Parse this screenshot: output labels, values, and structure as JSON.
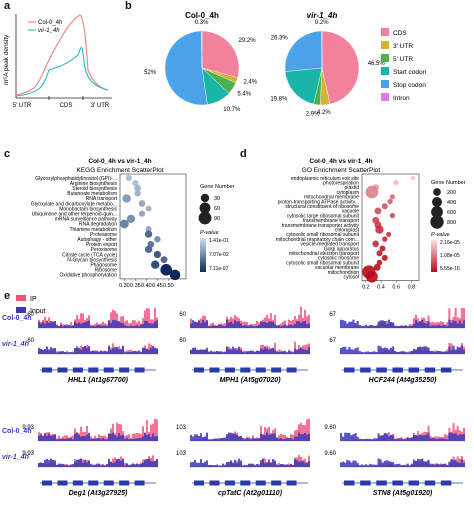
{
  "panels": {
    "a": {
      "label": "a",
      "ylabel": "m⁶A peak density",
      "legend": [
        "Col-0_4h",
        "vir-1_4h"
      ],
      "xticks": [
        "5' UTR",
        "CDS",
        "3' UTR"
      ],
      "colors": {
        "col": "#f08080",
        "vir": "#2ab7c4"
      }
    },
    "b": {
      "label": "b",
      "legend": [
        "CDS",
        "3' UTR",
        "5' UTR",
        "Start codon",
        "Stop codon",
        "Intron"
      ],
      "colors": [
        "#f2829c",
        "#d4b233",
        "#4caf50",
        "#19b5a6",
        "#4aa3e8",
        "#e47ce0"
      ]
    },
    "c": {
      "label": "c",
      "title1": "Col-0_4h vs vir-1_4h",
      "title2": "KEGG Enrichment ScatterPlot",
      "xlabel": "Rich Factor",
      "size_title": "Gene Number",
      "size_labels": [
        "30",
        "60",
        "90"
      ],
      "color_title": "P-value",
      "color_labels": [
        "1.41e-01",
        "7.07e-02",
        "7.11e-07"
      ]
    },
    "d": {
      "label": "d",
      "title1": "Col-0_4h vs vir-1_4h",
      "title2": "GO Enrichment ScatterPlot",
      "xlabel": "Rich Factor",
      "size_title": "Gene Number",
      "size_labels": [
        "200",
        "400",
        "600",
        "800"
      ],
      "color_title": "P-value",
      "color_labels": [
        "2.16e-05",
        "1.08e-05",
        "5.55e-16"
      ]
    },
    "e": {
      "label": "e",
      "legend": [
        "IP",
        "Input"
      ],
      "rows": [
        "Col-0_4h",
        "vir-1_4h"
      ],
      "genes": [
        {
          "name": "HHL1 (At1g67700)",
          "scale": "60"
        },
        {
          "name": "MPH1 (At5g07020)",
          "scale": "60"
        },
        {
          "name": "HCF244 (At4g35250)",
          "scale": "67"
        },
        {
          "name": "Deg1 (At3g27925)",
          "scale": "9.93"
        },
        {
          "name": "cpTatC (At2g01110)",
          "scale": "103"
        },
        {
          "name": "STN8 (At5g01920)",
          "scale": "9.60"
        }
      ],
      "colors": {
        "ip": "#f0507a",
        "input": "#3a3ab8"
      }
    }
  },
  "chart_data": [
    {
      "type": "line",
      "title": "",
      "xlabel": "",
      "ylabel": "m⁶A peak density",
      "categories": [
        "5' UTR",
        "CDS",
        "3' UTR"
      ],
      "series": [
        {
          "name": "Col-0_4h"
        },
        {
          "name": "vir-1_4h"
        }
      ]
    },
    {
      "type": "pie",
      "title": "Col-0_4h",
      "labels": [
        "CDS",
        "3' UTR",
        "5' UTR",
        "Start codon",
        "Stop codon",
        "Intron"
      ],
      "values": [
        29.2,
        2.4,
        5.4,
        10.7,
        52.0,
        0.3
      ]
    },
    {
      "type": "pie",
      "title": "vir-1_4h",
      "labels": [
        "CDS",
        "3' UTR",
        "5' UTR",
        "Start codon",
        "Stop codon",
        "Intron"
      ],
      "values": [
        46.5,
        4.2,
        2.9,
        19.8,
        26.3,
        0.2
      ]
    },
    {
      "type": "scatter",
      "title": "KEGG Enrichment ScatterPlot",
      "xlabel": "Rich Factor",
      "xlim": [
        0.28,
        0.58
      ],
      "xticks": [
        0.3,
        0.35,
        0.4,
        0.45,
        0.5
      ],
      "categories": [
        "Glycosylphosphatidylinositol (GPI)-...",
        "Arginine biosynthesis",
        "Steroid biosynthesis",
        "Butanoate metabolism",
        "RNA transport",
        "Glyoxylate and dicarboxylate metabo...",
        "Monobactam biosynthesis",
        "Ubiquinone and other terpenoid-quin...",
        "mRNA surveillance pathway",
        "RNA degradation",
        "Thiamine metabolism",
        "Proteasome",
        "Autophagy - other",
        "Protein export",
        "Peroxisome",
        "Citrate cycle (TCA cycle)",
        "N-Glycan biosynthesis",
        "Phagosome",
        "Ribosome",
        "Oxidative phosphorylation"
      ],
      "points": [
        {
          "x": 0.32,
          "size": 12,
          "p": 0.12
        },
        {
          "x": 0.35,
          "size": 12,
          "p": 0.12
        },
        {
          "x": 0.36,
          "size": 15,
          "p": 0.11
        },
        {
          "x": 0.36,
          "size": 14,
          "p": 0.11
        },
        {
          "x": 0.31,
          "size": 30,
          "p": 0.09
        },
        {
          "x": 0.38,
          "size": 15,
          "p": 0.1
        },
        {
          "x": 0.41,
          "size": 10,
          "p": 0.11
        },
        {
          "x": 0.38,
          "size": 12,
          "p": 0.1
        },
        {
          "x": 0.33,
          "size": 28,
          "p": 0.08
        },
        {
          "x": 0.3,
          "size": 35,
          "p": 0.07
        },
        {
          "x": 0.41,
          "size": 10,
          "p": 0.1
        },
        {
          "x": 0.41,
          "size": 20,
          "p": 0.05
        },
        {
          "x": 0.45,
          "size": 13,
          "p": 0.08
        },
        {
          "x": 0.42,
          "size": 15,
          "p": 0.06
        },
        {
          "x": 0.41,
          "size": 20,
          "p": 0.05
        },
        {
          "x": 0.45,
          "size": 20,
          "p": 0.04
        },
        {
          "x": 0.48,
          "size": 16,
          "p": 0.05
        },
        {
          "x": 0.44,
          "size": 30,
          "p": 0.03
        },
        {
          "x": 0.49,
          "size": 70,
          "p": 0.0
        },
        {
          "x": 0.53,
          "size": 55,
          "p": 0.0
        }
      ]
    },
    {
      "type": "scatter",
      "title": "GO Enrichment ScatterPlot",
      "xlabel": "Rich Factor",
      "xlim": [
        0.15,
        0.9
      ],
      "xticks": [
        0.2,
        0.4,
        0.6,
        0.8
      ],
      "categories": [
        "endoplasmic reticulum exit site",
        "photorespiration",
        "plastid",
        "cytoplasm",
        "mitochondrial membrane",
        "proton-transporting ATPase activity...",
        "structural constituent of ribosome",
        "vacuole",
        "cytosolic large ribosomal subunit",
        "transmembrane transport",
        "transmembrane transporter activity",
        "chloroplast",
        "cytosolic small ribosomal subunit",
        "mitochondrial respiratory chain com...",
        "vesicle-mediated transport",
        "Golgi apparatus",
        "mitochondrial electron transport",
        "cytosolic ribosome",
        "cytosolic small ribosomal subunit",
        "vacuolar membrane",
        "mitochondrion",
        "cytosol"
      ],
      "points": [
        {
          "x": 0.82,
          "size": 50,
          "p": 2e-05
        },
        {
          "x": 0.6,
          "size": 60,
          "p": 1.8e-05
        },
        {
          "x": 0.33,
          "size": 120,
          "p": 1.5e-05
        },
        {
          "x": 0.28,
          "size": 700,
          "p": 1.2e-05
        },
        {
          "x": 0.55,
          "size": 60,
          "p": 1e-05
        },
        {
          "x": 0.52,
          "size": 70,
          "p": 9e-06
        },
        {
          "x": 0.45,
          "size": 100,
          "p": 8e-06
        },
        {
          "x": 0.36,
          "size": 150,
          "p": 7e-06
        },
        {
          "x": 0.55,
          "size": 70,
          "p": 7e-06
        },
        {
          "x": 0.33,
          "size": 150,
          "p": 6e-06
        },
        {
          "x": 0.36,
          "size": 150,
          "p": 5e-06
        },
        {
          "x": 0.38,
          "size": 250,
          "p": 4e-06
        },
        {
          "x": 0.5,
          "size": 60,
          "p": 4e-06
        },
        {
          "x": 0.45,
          "size": 70,
          "p": 3e-06
        },
        {
          "x": 0.33,
          "size": 130,
          "p": 3e-06
        },
        {
          "x": 0.42,
          "size": 100,
          "p": 2e-06
        },
        {
          "x": 0.38,
          "size": 100,
          "p": 2e-06
        },
        {
          "x": 0.45,
          "size": 100,
          "p": 1e-06
        },
        {
          "x": 0.38,
          "size": 80,
          "p": 1e-06
        },
        {
          "x": 0.35,
          "size": 150,
          "p": 5e-07
        },
        {
          "x": 0.24,
          "size": 800,
          "p": 1e-07
        },
        {
          "x": 0.28,
          "size": 600,
          "p": 0.0
        }
      ]
    }
  ]
}
